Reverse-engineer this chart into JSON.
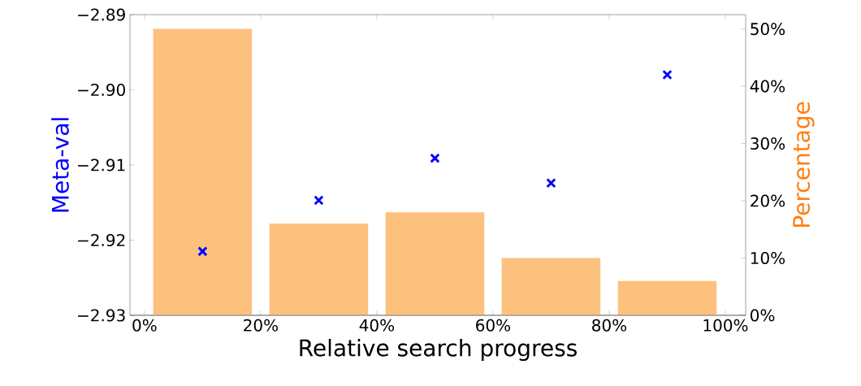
{
  "chart_data": {
    "type": "bar",
    "xlabel": "Relative search progress",
    "ylabel": "Meta-val",
    "y2label": "Percentage",
    "x": [
      10,
      30,
      50,
      70,
      90
    ],
    "series": [
      {
        "axis": "y2",
        "color": "#fdc17e",
        "values": [
          50,
          16,
          18,
          10,
          6
        ]
      },
      {
        "type": "scatter",
        "axis": "y",
        "color": "#0000ff",
        "marker": "cross",
        "values": [
          -2.9215,
          -2.9147,
          -2.9091,
          -2.9124,
          -2.898
        ]
      }
    ],
    "xlim": [
      -2.5,
      103.5
    ],
    "xticks": [
      {
        "value": 0,
        "label": "0%"
      },
      {
        "value": 20,
        "label": "20%"
      },
      {
        "value": 40,
        "label": "40%"
      },
      {
        "value": 60,
        "label": "60%"
      },
      {
        "value": 80,
        "label": "80%"
      },
      {
        "value": 100,
        "label": "100%"
      }
    ],
    "ylim": [
      -2.93,
      -2.89
    ],
    "yticks": [
      {
        "value": -2.93,
        "label": "−2.93"
      },
      {
        "value": -2.92,
        "label": "−2.92"
      },
      {
        "value": -2.91,
        "label": "−2.91"
      },
      {
        "value": -2.9,
        "label": "−2.90"
      },
      {
        "value": -2.89,
        "label": "−2.89"
      }
    ],
    "y2lim": [
      0,
      52.5
    ],
    "y2ticks": [
      {
        "value": 0,
        "label": "0%"
      },
      {
        "value": 10,
        "label": "10%"
      },
      {
        "value": 20,
        "label": "20%"
      },
      {
        "value": 30,
        "label": "30%"
      },
      {
        "value": 40,
        "label": "40%"
      },
      {
        "value": 50,
        "label": "50%"
      }
    ],
    "grid": false
  }
}
